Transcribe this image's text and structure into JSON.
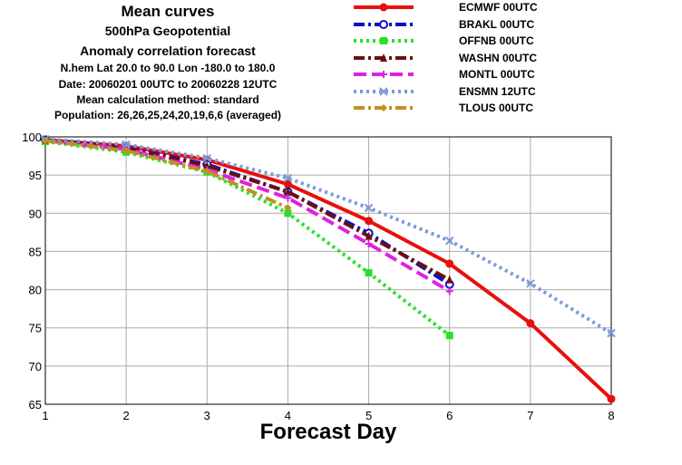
{
  "header": {
    "title": "Mean curves",
    "subtitle1": "500hPa Geopotential",
    "subtitle2": "Anomaly correlation forecast",
    "info1": "N.hem  Lat  20.0 to 90.0 Lon  -180.0 to  180.0",
    "info2": "Date: 20060201 00UTC to 20060228 12UTC",
    "info3": "Mean calculation method: standard",
    "info4": "Population: 26,26,25,24,20,19,6,6 (averaged)"
  },
  "chart_data": {
    "type": "line",
    "xlabel": "Forecast Day",
    "ylabel": "",
    "xlim": [
      1,
      8
    ],
    "ylim": [
      65,
      100
    ],
    "xticks": [
      1,
      2,
      3,
      4,
      5,
      6,
      7,
      8
    ],
    "yticks": [
      65,
      70,
      75,
      80,
      85,
      90,
      95,
      100
    ],
    "grid": true,
    "legend_position": "top-right",
    "series": [
      {
        "name": "ECMWF 00UTC",
        "color": "#e8100c",
        "dash": "solid",
        "marker": "circle",
        "x": [
          1,
          2,
          3,
          4,
          5,
          6,
          7,
          8
        ],
        "y": [
          99.6,
          98.8,
          97.0,
          93.8,
          89.0,
          83.4,
          75.6,
          65.7
        ]
      },
      {
        "name": "BRAKL 00UTC",
        "color": "#0a10c8",
        "dash": "dashdot",
        "marker": "open-circle",
        "x": [
          1,
          2,
          3,
          4,
          5,
          6
        ],
        "y": [
          99.6,
          98.6,
          96.4,
          92.8,
          87.4,
          80.7
        ]
      },
      {
        "name": "OFFNB 00UTC",
        "color": "#28e028",
        "dash": "dot",
        "marker": "square",
        "x": [
          1,
          2,
          3,
          4,
          5,
          6
        ],
        "y": [
          99.4,
          98.0,
          95.4,
          90.0,
          82.2,
          74.0
        ]
      },
      {
        "name": "WASHN 00UTC",
        "color": "#6a1010",
        "dash": "dashdot",
        "marker": "triangle",
        "x": [
          1,
          2,
          3,
          4,
          5,
          6
        ],
        "y": [
          99.6,
          98.5,
          96.2,
          92.8,
          87.0,
          81.3
        ]
      },
      {
        "name": "MONTL 00UTC",
        "color": "#e020e0",
        "dash": "dash",
        "marker": "plus",
        "x": [
          1,
          2,
          3,
          4,
          5,
          6
        ],
        "y": [
          99.5,
          98.4,
          95.7,
          92.0,
          86.0,
          79.8
        ]
      },
      {
        "name": "ENSMN 12UTC",
        "color": "#7a9ad8",
        "dash": "dot",
        "marker": "cross",
        "x": [
          1,
          2,
          3,
          4,
          5,
          6,
          7,
          8
        ],
        "y": [
          99.7,
          99.0,
          97.2,
          94.6,
          90.7,
          86.4,
          80.8,
          74.3
        ]
      },
      {
        "name": "TLOUS 00UTC",
        "color": "#c09020",
        "dash": "dashdot",
        "marker": "diamond",
        "x": [
          1,
          2,
          3,
          4
        ],
        "y": [
          99.5,
          98.2,
          95.5,
          90.7
        ]
      }
    ]
  }
}
